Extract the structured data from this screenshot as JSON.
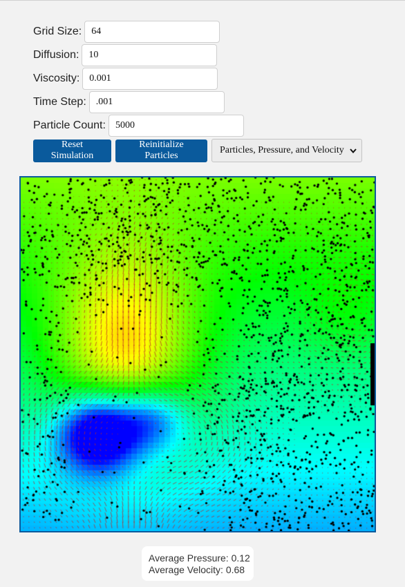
{
  "controls": {
    "grid_size": {
      "label": "Grid Size:",
      "value": "64"
    },
    "diffusion": {
      "label": "Diffusion:",
      "value": "10"
    },
    "viscosity": {
      "label": "Viscosity:",
      "value": "0.001"
    },
    "time_step": {
      "label": "Time Step:",
      "value": ".001"
    },
    "particle_count": {
      "label": "Particle Count:",
      "value": "5000"
    }
  },
  "buttons": {
    "reset": "Reset Simulation",
    "reinit": "Reinitialize Particles"
  },
  "display_mode": {
    "selected": "Particles, Pressure, and Velocity",
    "icon": "chevron-down-icon"
  },
  "stats": {
    "avg_pressure_label": "Average Pressure:",
    "avg_pressure_value": "0.12",
    "avg_velocity_label": "Average Velocity:",
    "avg_velocity_value": "0.68"
  },
  "colors": {
    "accent": "#0a5a9c",
    "page_background": "#f2f2f2",
    "particle": "#000000",
    "velocity_line": "#c0392b"
  }
}
